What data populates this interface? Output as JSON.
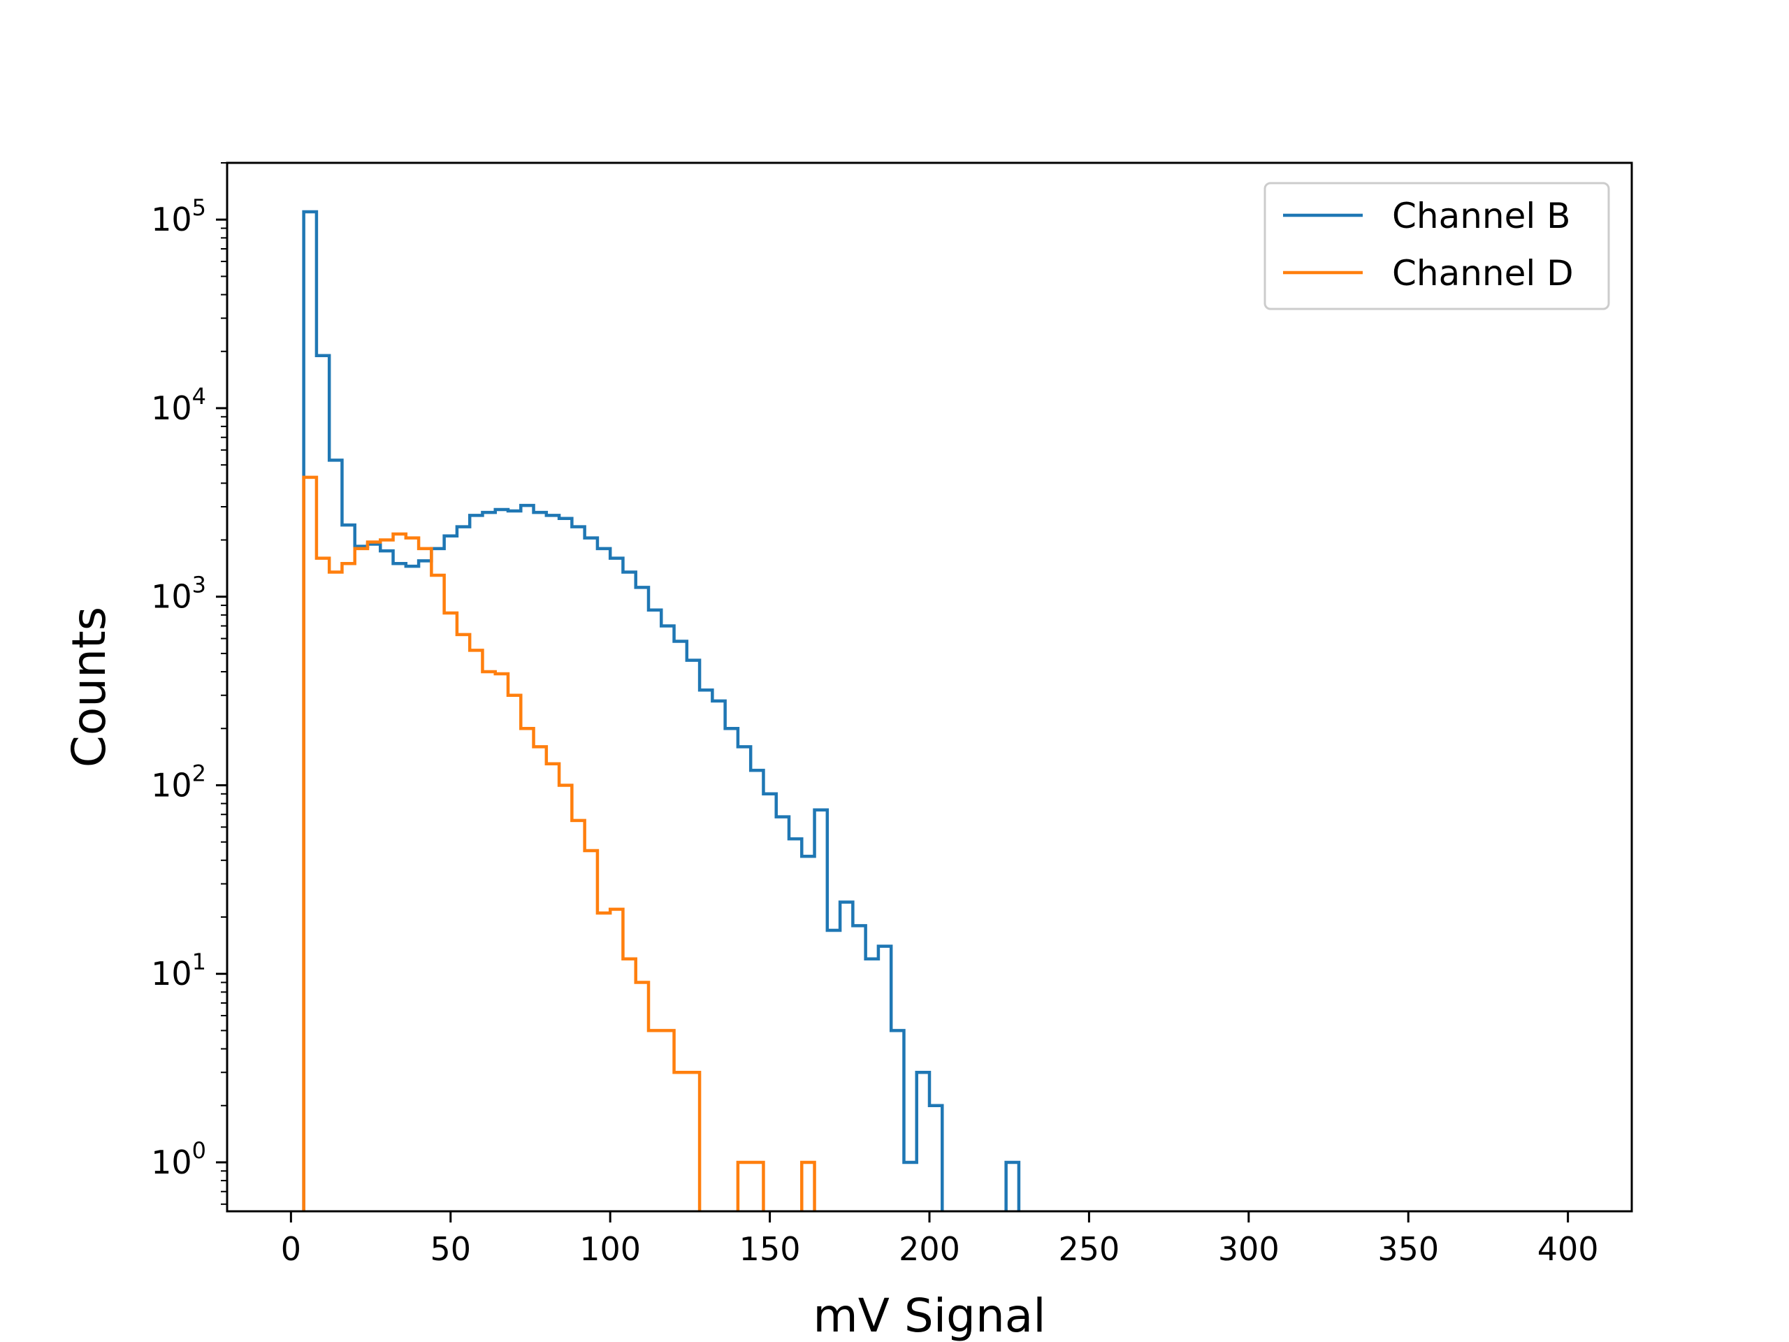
{
  "chart_data": {
    "type": "step-histogram",
    "title": "",
    "xlabel": "mV Signal",
    "ylabel": "Counts",
    "xlim": [
      -20,
      420
    ],
    "ylim": [
      0.55,
      200000
    ],
    "yscale": "log",
    "grid": false,
    "legend_position": "top-right",
    "x_ticks": [
      0,
      50,
      100,
      150,
      200,
      250,
      300,
      350,
      400
    ],
    "x_tick_labels": [
      "0",
      "50",
      "100",
      "150",
      "200",
      "250",
      "300",
      "350",
      "400"
    ],
    "y_ticks": [
      {
        "value": 1,
        "base": "10",
        "exp": "0"
      },
      {
        "value": 10,
        "base": "10",
        "exp": "1"
      },
      {
        "value": 100,
        "base": "10",
        "exp": "2"
      },
      {
        "value": 1000,
        "base": "10",
        "exp": "3"
      },
      {
        "value": 10000,
        "base": "10",
        "exp": "4"
      },
      {
        "value": 100000,
        "base": "10",
        "exp": "5"
      }
    ],
    "series": [
      {
        "name": "Channel B",
        "color": "#1f77b4",
        "bin_width": 4.0,
        "bin_edges_start": 4.0,
        "counts": [
          110000,
          19000,
          5300,
          2400,
          1850,
          1900,
          1750,
          1500,
          1450,
          1550,
          1800,
          2100,
          2350,
          2700,
          2800,
          2900,
          2850,
          3050,
          2800,
          2700,
          2600,
          2350,
          2050,
          1800,
          1600,
          1350,
          1120,
          850,
          700,
          580,
          460,
          320,
          280,
          200,
          160,
          120,
          90,
          68,
          52,
          42,
          74,
          17,
          24,
          18,
          12,
          14,
          5,
          1,
          3,
          2,
          0,
          0,
          0,
          0,
          0,
          1
        ]
      },
      {
        "name": "Channel D",
        "color": "#ff7f0e",
        "bin_width": 4.0,
        "bin_edges_start": 4.0,
        "counts": [
          4300,
          1600,
          1350,
          1500,
          1800,
          1950,
          2000,
          2150,
          2050,
          1800,
          1300,
          820,
          630,
          520,
          400,
          390,
          300,
          200,
          160,
          130,
          100,
          65,
          45,
          21,
          22,
          12,
          9,
          5,
          5,
          3,
          3,
          0,
          0,
          0,
          1,
          1,
          0,
          0,
          0,
          1
        ]
      }
    ]
  }
}
